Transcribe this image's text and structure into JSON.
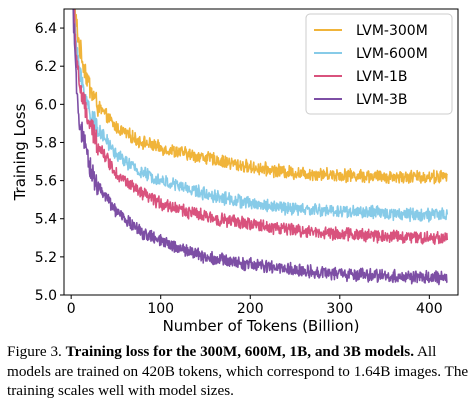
{
  "chart_data": {
    "type": "line",
    "xlabel": "Number of Tokens (Billion)",
    "ylabel": "Training Loss",
    "xlim": [
      -8,
      432
    ],
    "ylim": [
      5.0,
      6.5
    ],
    "xticks": [
      "0",
      "100",
      "200",
      "300",
      "400"
    ],
    "yticks": [
      "5.0",
      "5.2",
      "5.4",
      "5.6",
      "5.8",
      "6.0",
      "6.2",
      "6.4"
    ],
    "grid": false,
    "legend_position": "top-right",
    "x_end": 420,
    "series": [
      {
        "name": "LVM-300M",
        "color": "#f0b43a",
        "points": [
          [
            0,
            6.9
          ],
          [
            5,
            6.45
          ],
          [
            10,
            6.28
          ],
          [
            20,
            6.1
          ],
          [
            30,
            5.99
          ],
          [
            50,
            5.88
          ],
          [
            75,
            5.81
          ],
          [
            100,
            5.77
          ],
          [
            150,
            5.72
          ],
          [
            200,
            5.67
          ],
          [
            250,
            5.64
          ],
          [
            300,
            5.63
          ],
          [
            350,
            5.62
          ],
          [
            400,
            5.62
          ],
          [
            420,
            5.62
          ]
        ]
      },
      {
        "name": "LVM-600M",
        "color": "#87cbe8",
        "points": [
          [
            0,
            6.85
          ],
          [
            5,
            6.36
          ],
          [
            10,
            6.15
          ],
          [
            20,
            5.97
          ],
          [
            30,
            5.87
          ],
          [
            50,
            5.74
          ],
          [
            75,
            5.65
          ],
          [
            100,
            5.6
          ],
          [
            150,
            5.53
          ],
          [
            200,
            5.48
          ],
          [
            250,
            5.45
          ],
          [
            300,
            5.44
          ],
          [
            350,
            5.43
          ],
          [
            400,
            5.42
          ],
          [
            420,
            5.42
          ]
        ]
      },
      {
        "name": "LVM-1B",
        "color": "#d9527d",
        "points": [
          [
            0,
            6.8
          ],
          [
            5,
            6.3
          ],
          [
            10,
            6.08
          ],
          [
            20,
            5.9
          ],
          [
            30,
            5.79
          ],
          [
            50,
            5.64
          ],
          [
            75,
            5.54
          ],
          [
            100,
            5.48
          ],
          [
            150,
            5.41
          ],
          [
            200,
            5.37
          ],
          [
            250,
            5.34
          ],
          [
            300,
            5.32
          ],
          [
            350,
            5.31
          ],
          [
            400,
            5.3
          ],
          [
            420,
            5.3
          ]
        ]
      },
      {
        "name": "LVM-3B",
        "color": "#7d4fa5",
        "points": [
          [
            0,
            6.75
          ],
          [
            5,
            6.15
          ],
          [
            10,
            5.88
          ],
          [
            20,
            5.68
          ],
          [
            30,
            5.57
          ],
          [
            50,
            5.44
          ],
          [
            75,
            5.34
          ],
          [
            100,
            5.28
          ],
          [
            150,
            5.2
          ],
          [
            200,
            5.16
          ],
          [
            250,
            5.13
          ],
          [
            300,
            5.11
          ],
          [
            350,
            5.1
          ],
          [
            400,
            5.09
          ],
          [
            420,
            5.09
          ]
        ]
      }
    ]
  },
  "caption": {
    "label": "Figure 3.",
    "title": "Training loss for the 300M, 600M, 1B, and 3B models.",
    "body": "All models are trained on 420B tokens, which correspond to 1.64B images. The training scales well with model sizes."
  }
}
